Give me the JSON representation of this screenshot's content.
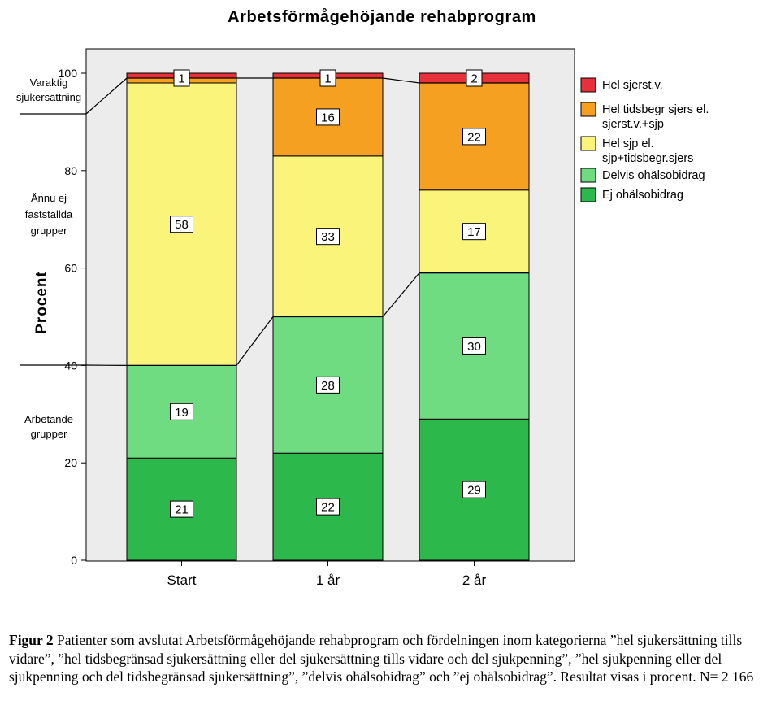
{
  "chart_data": {
    "type": "bar",
    "stacked": true,
    "title": "Arbetsförmågehöjande rehabprogram",
    "ylabel": "Procent",
    "xlabel": "",
    "ylim": [
      0,
      100
    ],
    "yticks": [
      0,
      20,
      40,
      60,
      80,
      100
    ],
    "categories": [
      "Start",
      "1 år",
      "2 år"
    ],
    "series": [
      {
        "name": "Ej ohälsobidrag",
        "color": "#2db84b",
        "values": [
          21,
          22,
          29
        ],
        "labels": [
          "21",
          "22",
          "29"
        ]
      },
      {
        "name": "Delvis ohälsobidrag",
        "color": "#70dc82",
        "values": [
          19,
          28,
          30
        ],
        "labels": [
          "19",
          "28",
          "30"
        ]
      },
      {
        "name": "Hel sjp el. sjp+tidsbegr.sjers",
        "color": "#faf57a",
        "values": [
          58,
          33,
          17
        ],
        "labels": [
          "58",
          "33",
          "17"
        ]
      },
      {
        "name": "Hel tidsbegr sjers el. sjerst.v.+sjp",
        "color": "#f5a020",
        "values": [
          1,
          16,
          22
        ],
        "labels": [
          "",
          "16",
          "22"
        ]
      },
      {
        "name": "Hel sjerst.v.",
        "color": "#e8303a",
        "values": [
          1,
          1,
          2
        ],
        "labels": [
          "1",
          "1",
          "2"
        ]
      }
    ],
    "legend_position": "right",
    "group_labels": [
      {
        "text": [
          "Varaktig",
          "sjukersättning"
        ]
      },
      {
        "text": [
          "Ännu ej",
          "fastställda",
          "grupper"
        ]
      },
      {
        "text": [
          "Arbetande",
          "grupper"
        ]
      }
    ],
    "group_boundaries": [
      {
        "values": [
          40,
          50,
          59
        ]
      },
      {
        "values": [
          99,
          99,
          98
        ]
      }
    ]
  },
  "caption": {
    "label": "Figur 2",
    "text": " Patienter som avslutat Arbetsförmågehöjande rehabprogram och fördelningen inom kategorierna ”hel sjukersättning tills vidare”, ”hel tidsbegränsad sjukersättning eller del sjukersättning tills vidare och del sjukpenning”, ”hel sjukpenning eller del sjukpenning och del tidsbegränsad sjukersättning”, ”delvis ohälsobidrag” och ”ej ohälsobidrag”. Resultat visas i procent. N= 2 166"
  }
}
